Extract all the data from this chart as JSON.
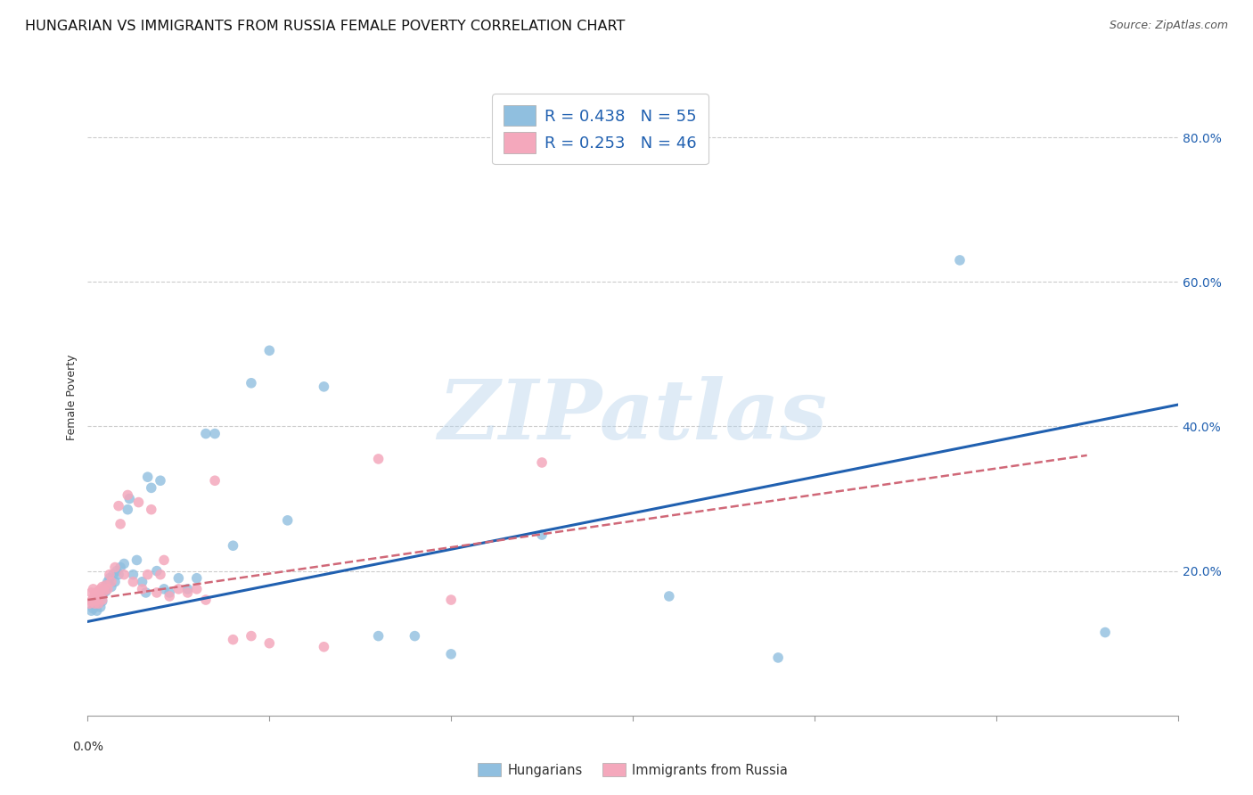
{
  "title": "HUNGARIAN VS IMMIGRANTS FROM RUSSIA FEMALE POVERTY CORRELATION CHART",
  "source": "Source: ZipAtlas.com",
  "ylabel": "Female Poverty",
  "xlim": [
    0.0,
    0.6
  ],
  "ylim": [
    0.0,
    0.88
  ],
  "ytick_vals": [
    0.0,
    0.2,
    0.4,
    0.6,
    0.8
  ],
  "ytick_labels": [
    "",
    "20.0%",
    "40.0%",
    "60.0%",
    "80.0%"
  ],
  "xtick_vals": [
    0.0,
    0.1,
    0.2,
    0.3,
    0.4,
    0.5,
    0.6
  ],
  "legend_R": [
    {
      "label": "R = 0.438   N = 55",
      "color": "#a8c8e8"
    },
    {
      "label": "R = 0.253   N = 46",
      "color": "#f8b8c8"
    }
  ],
  "watermark": "ZIPatlas",
  "blue_scatter": {
    "x": [
      0.002,
      0.003,
      0.003,
      0.004,
      0.004,
      0.005,
      0.005,
      0.006,
      0.006,
      0.007,
      0.007,
      0.008,
      0.008,
      0.009,
      0.01,
      0.01,
      0.011,
      0.012,
      0.013,
      0.014,
      0.015,
      0.016,
      0.017,
      0.018,
      0.02,
      0.022,
      0.023,
      0.025,
      0.027,
      0.03,
      0.032,
      0.033,
      0.035,
      0.038,
      0.04,
      0.042,
      0.045,
      0.05,
      0.055,
      0.06,
      0.065,
      0.07,
      0.08,
      0.09,
      0.1,
      0.11,
      0.13,
      0.16,
      0.18,
      0.2,
      0.25,
      0.32,
      0.38,
      0.48,
      0.56
    ],
    "y": [
      0.145,
      0.155,
      0.148,
      0.16,
      0.152,
      0.158,
      0.145,
      0.162,
      0.155,
      0.165,
      0.15,
      0.168,
      0.158,
      0.175,
      0.172,
      0.18,
      0.185,
      0.19,
      0.178,
      0.195,
      0.185,
      0.2,
      0.195,
      0.205,
      0.21,
      0.285,
      0.3,
      0.195,
      0.215,
      0.185,
      0.17,
      0.33,
      0.315,
      0.2,
      0.325,
      0.175,
      0.17,
      0.19,
      0.175,
      0.19,
      0.39,
      0.39,
      0.235,
      0.46,
      0.505,
      0.27,
      0.455,
      0.11,
      0.11,
      0.085,
      0.25,
      0.165,
      0.08,
      0.63,
      0.115
    ]
  },
  "pink_scatter": {
    "x": [
      0.001,
      0.002,
      0.002,
      0.003,
      0.003,
      0.004,
      0.004,
      0.005,
      0.005,
      0.006,
      0.006,
      0.007,
      0.007,
      0.008,
      0.008,
      0.009,
      0.01,
      0.011,
      0.012,
      0.013,
      0.015,
      0.017,
      0.018,
      0.02,
      0.022,
      0.025,
      0.028,
      0.03,
      0.033,
      0.035,
      0.038,
      0.04,
      0.042,
      0.045,
      0.05,
      0.055,
      0.06,
      0.065,
      0.07,
      0.08,
      0.09,
      0.1,
      0.13,
      0.16,
      0.2,
      0.25
    ],
    "y": [
      0.155,
      0.158,
      0.17,
      0.162,
      0.175,
      0.168,
      0.155,
      0.17,
      0.16,
      0.172,
      0.155,
      0.165,
      0.175,
      0.178,
      0.16,
      0.172,
      0.18,
      0.175,
      0.195,
      0.185,
      0.205,
      0.29,
      0.265,
      0.195,
      0.305,
      0.185,
      0.295,
      0.175,
      0.195,
      0.285,
      0.17,
      0.195,
      0.215,
      0.165,
      0.175,
      0.17,
      0.175,
      0.16,
      0.325,
      0.105,
      0.11,
      0.1,
      0.095,
      0.355,
      0.16,
      0.35
    ]
  },
  "blue_line": {
    "x": [
      0.0,
      0.6
    ],
    "y": [
      0.13,
      0.43
    ]
  },
  "pink_line": {
    "x": [
      0.0,
      0.55
    ],
    "y": [
      0.16,
      0.36
    ]
  },
  "scatter_size": 70,
  "blue_color": "#90bfdf",
  "pink_color": "#f4a8bc",
  "blue_line_color": "#2060b0",
  "pink_line_color": "#d06878",
  "grid_color": "#cccccc",
  "background_color": "#ffffff",
  "title_fontsize": 11.5,
  "source_fontsize": 9,
  "axis_label_fontsize": 9,
  "tick_fontsize": 10,
  "legend_fontsize": 13
}
